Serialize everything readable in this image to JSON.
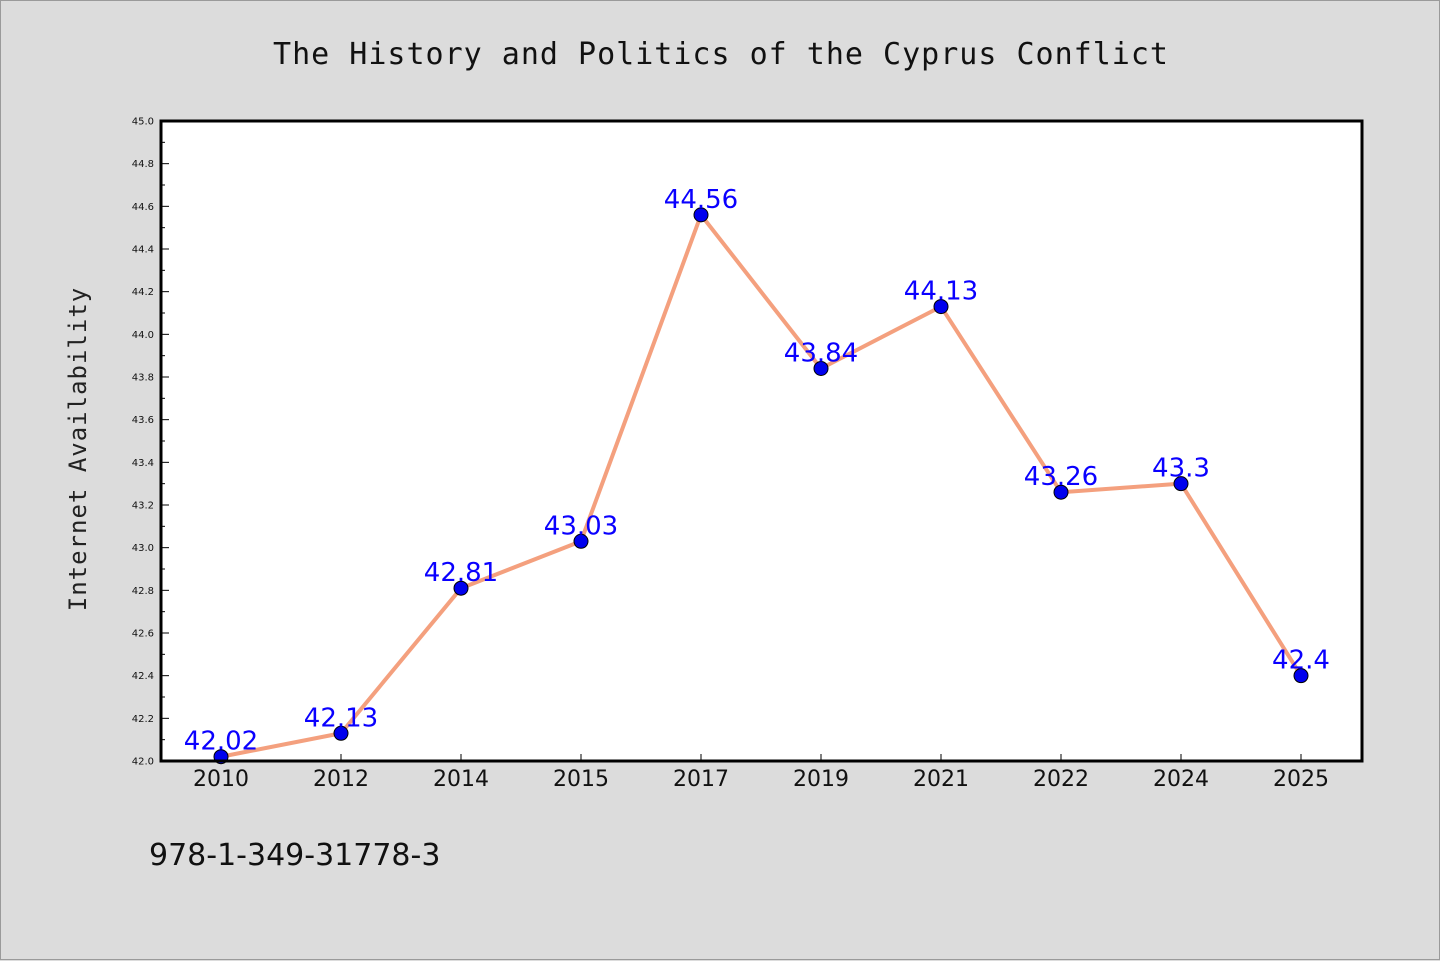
{
  "chart_data": {
    "type": "line",
    "title": "The History and Politics of the Cyprus Conflict",
    "xlabel": "",
    "ylabel": "Internet Availability",
    "categories": [
      "2010",
      "2012",
      "2014",
      "2015",
      "2017",
      "2019",
      "2021",
      "2022",
      "2024",
      "2025"
    ],
    "series": [
      {
        "values": [
          42.02,
          42.13,
          42.81,
          43.03,
          44.56,
          43.84,
          44.13,
          43.26,
          43.3,
          42.4
        ],
        "data_labels": [
          "42.02",
          "42.13",
          "42.81",
          "43.03",
          "44.56",
          "43.84",
          "44.13",
          "43.26",
          "43.3",
          "42.4"
        ],
        "line_color": "#f4a07e",
        "marker_color": "#0000ee",
        "label_color": "#0a00ff"
      }
    ],
    "ylim": [
      42.0,
      45.0
    ],
    "yticks": [
      "42.0",
      "42.2",
      "42.4",
      "42.6",
      "42.8",
      "43.0",
      "43.2",
      "43.4",
      "43.6",
      "43.8",
      "44.0",
      "44.2",
      "44.4",
      "44.6",
      "44.8",
      "45.0"
    ],
    "grid": false,
    "legend": "none"
  },
  "footer": {
    "isbn": "978-1-349-31778-3"
  },
  "colors": {
    "background": "#dcdcdc",
    "plot_background": "#ffffff",
    "axis": "#000000"
  }
}
